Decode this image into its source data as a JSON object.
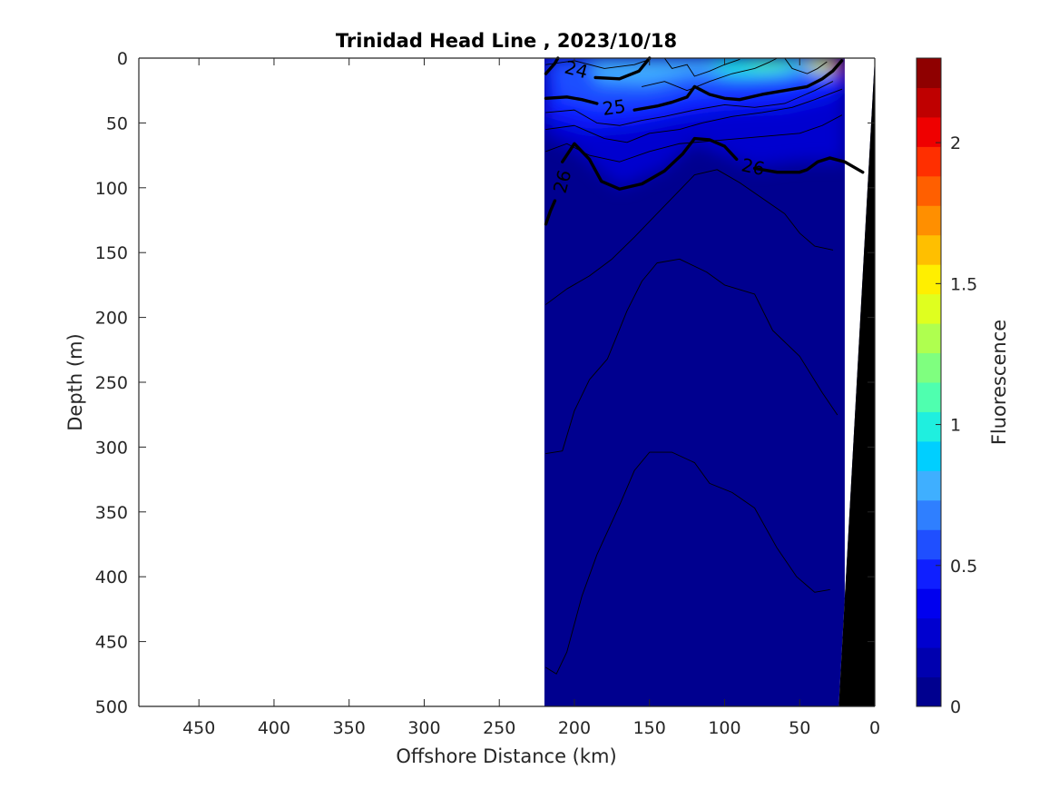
{
  "chart_data": {
    "type": "contour",
    "title": "Trinidad Head Line , 2023/10/18",
    "xlabel": "Offshore Distance (km)",
    "ylabel": "Depth (m)",
    "xlim": [
      490,
      0
    ],
    "ylim": [
      0,
      500
    ],
    "x_reversed": true,
    "y_reversed": true,
    "x_ticks": [
      450,
      400,
      350,
      300,
      250,
      200,
      150,
      100,
      50,
      0
    ],
    "y_ticks": [
      0,
      50,
      100,
      150,
      200,
      250,
      300,
      350,
      400,
      450,
      500
    ],
    "data_extent_km": [
      220,
      20
    ],
    "colorbar": {
      "label": "Fluorescence",
      "range": [
        0,
        2.3
      ],
      "ticks": [
        0,
        0.5,
        1,
        1.5,
        2
      ],
      "colors": [
        "#00008f",
        "#0000af",
        "#0000cf",
        "#0000ef",
        "#0f1fff",
        "#1f4fff",
        "#2f7fff",
        "#3fafff",
        "#00cfff",
        "#1fefdf",
        "#4fffaf",
        "#7fff7f",
        "#afff4f",
        "#dfff1f",
        "#ffef00",
        "#ffbf00",
        "#ff8f00",
        "#ff5f00",
        "#ff2f00",
        "#ef0000",
        "#bf0000",
        "#8f0000"
      ]
    },
    "contour_labels": [
      "24",
      "25",
      "26",
      "26"
    ],
    "density_contours": [
      {
        "name": "24",
        "bold": true,
        "points": [
          [
            219,
            12
          ],
          [
            213,
            4
          ],
          [
            211,
            0
          ]
        ]
      },
      {
        "name": "24",
        "bold": true,
        "points": [
          [
            186,
            15
          ],
          [
            170,
            16
          ],
          [
            157,
            10
          ],
          [
            150,
            0
          ]
        ]
      },
      {
        "name": "",
        "bold": false,
        "points": [
          [
            219,
            5
          ],
          [
            200,
            2
          ],
          [
            180,
            8
          ],
          [
            160,
            5
          ],
          [
            150,
            1
          ]
        ]
      },
      {
        "name": "",
        "bold": false,
        "points": [
          [
            140,
            0
          ],
          [
            135,
            8
          ],
          [
            125,
            5
          ],
          [
            120,
            14
          ],
          [
            110,
            10
          ],
          [
            100,
            5
          ],
          [
            90,
            1
          ]
        ]
      },
      {
        "name": "",
        "bold": false,
        "points": [
          [
            155,
            22
          ],
          [
            140,
            18
          ],
          [
            125,
            25
          ],
          [
            110,
            18
          ],
          [
            95,
            12
          ],
          [
            80,
            8
          ],
          [
            70,
            3
          ],
          [
            65,
            0
          ]
        ]
      },
      {
        "name": "",
        "bold": false,
        "points": [
          [
            60,
            0
          ],
          [
            55,
            8
          ],
          [
            45,
            12
          ],
          [
            38,
            8
          ],
          [
            32,
            3
          ]
        ]
      },
      {
        "name": "25",
        "bold": true,
        "points": [
          [
            219,
            31
          ],
          [
            205,
            30
          ],
          [
            195,
            32
          ],
          [
            185,
            35
          ]
        ]
      },
      {
        "name": "25",
        "bold": true,
        "points": [
          [
            160,
            40
          ],
          [
            145,
            37
          ],
          [
            135,
            34
          ],
          [
            125,
            30
          ],
          [
            120,
            22
          ],
          [
            110,
            28
          ],
          [
            100,
            31
          ],
          [
            90,
            32
          ],
          [
            75,
            28
          ],
          [
            60,
            25
          ],
          [
            45,
            22
          ],
          [
            35,
            16
          ],
          [
            28,
            10
          ],
          [
            22,
            2
          ]
        ]
      },
      {
        "name": "",
        "bold": false,
        "points": [
          [
            219,
            42
          ],
          [
            200,
            40
          ],
          [
            185,
            50
          ],
          [
            170,
            52
          ],
          [
            155,
            48
          ],
          [
            140,
            45
          ],
          [
            120,
            40
          ],
          [
            100,
            36
          ],
          [
            80,
            38
          ],
          [
            60,
            35
          ],
          [
            40,
            25
          ],
          [
            28,
            18
          ]
        ]
      },
      {
        "name": "",
        "bold": false,
        "points": [
          [
            219,
            55
          ],
          [
            200,
            52
          ],
          [
            180,
            62
          ],
          [
            165,
            65
          ],
          [
            150,
            58
          ],
          [
            130,
            55
          ],
          [
            115,
            50
          ],
          [
            95,
            45
          ],
          [
            75,
            42
          ],
          [
            55,
            38
          ],
          [
            40,
            32
          ],
          [
            22,
            24
          ]
        ]
      },
      {
        "name": "",
        "bold": false,
        "points": [
          [
            219,
            72
          ],
          [
            205,
            66
          ],
          [
            190,
            75
          ],
          [
            170,
            80
          ],
          [
            150,
            72
          ],
          [
            130,
            66
          ],
          [
            110,
            64
          ],
          [
            90,
            62
          ],
          [
            70,
            60
          ],
          [
            50,
            58
          ],
          [
            35,
            52
          ],
          [
            22,
            44
          ]
        ]
      },
      {
        "name": "26",
        "bold": true,
        "points": [
          [
            208,
            80
          ],
          [
            200,
            66
          ],
          [
            190,
            78
          ],
          [
            182,
            95
          ],
          [
            170,
            101
          ],
          [
            155,
            97
          ],
          [
            140,
            87
          ],
          [
            128,
            74
          ],
          [
            120,
            62
          ],
          [
            110,
            63
          ],
          [
            100,
            68
          ],
          [
            92,
            78
          ]
        ]
      },
      {
        "name": "26",
        "bold": true,
        "points": [
          [
            80,
            85
          ],
          [
            65,
            88
          ],
          [
            50,
            88
          ],
          [
            45,
            86
          ],
          [
            38,
            80
          ],
          [
            30,
            77
          ],
          [
            20,
            80
          ],
          [
            8,
            88
          ]
        ]
      },
      {
        "name": "26",
        "bold": true,
        "points": [
          [
            219,
            128
          ],
          [
            216,
            118
          ],
          [
            213,
            110
          ]
        ]
      },
      {
        "name": "",
        "bold": false,
        "points": [
          [
            219,
            190
          ],
          [
            205,
            178
          ],
          [
            190,
            168
          ],
          [
            175,
            155
          ],
          [
            160,
            138
          ],
          [
            145,
            120
          ],
          [
            130,
            102
          ],
          [
            120,
            90
          ],
          [
            105,
            86
          ],
          [
            90,
            96
          ],
          [
            75,
            108
          ],
          [
            60,
            120
          ],
          [
            50,
            135
          ],
          [
            40,
            145
          ],
          [
            28,
            148
          ]
        ]
      },
      {
        "name": "",
        "bold": false,
        "points": [
          [
            219,
            305
          ],
          [
            208,
            303
          ],
          [
            200,
            272
          ],
          [
            190,
            248
          ],
          [
            178,
            232
          ],
          [
            172,
            215
          ],
          [
            165,
            195
          ],
          [
            155,
            172
          ],
          [
            145,
            158
          ],
          [
            130,
            155
          ],
          [
            112,
            165
          ],
          [
            100,
            175
          ],
          [
            80,
            182
          ],
          [
            68,
            210
          ],
          [
            50,
            230
          ],
          [
            35,
            258
          ],
          [
            25,
            275
          ]
        ]
      },
      {
        "name": "",
        "bold": false,
        "points": [
          [
            219,
            470
          ],
          [
            212,
            475
          ],
          [
            205,
            458
          ],
          [
            195,
            415
          ],
          [
            185,
            383
          ],
          [
            170,
            345
          ],
          [
            160,
            318
          ],
          [
            150,
            304
          ],
          [
            135,
            304
          ],
          [
            120,
            312
          ],
          [
            110,
            328
          ],
          [
            95,
            335
          ],
          [
            80,
            347
          ],
          [
            65,
            378
          ],
          [
            52,
            400
          ],
          [
            40,
            412
          ],
          [
            30,
            410
          ]
        ]
      }
    ]
  }
}
